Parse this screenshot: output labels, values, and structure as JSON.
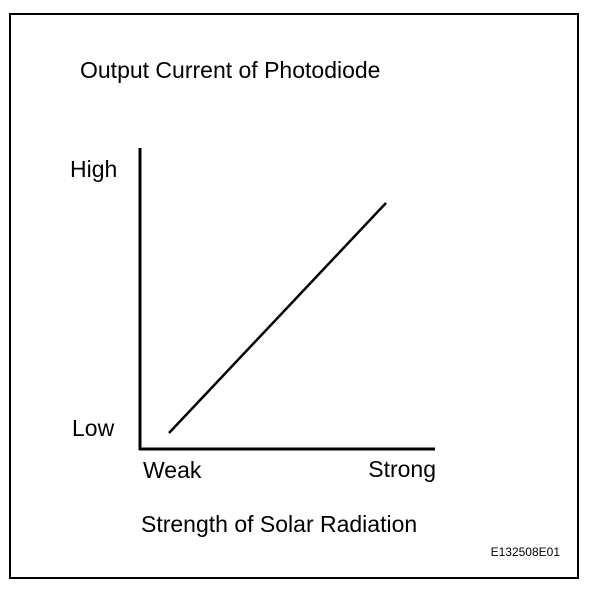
{
  "title": "Output Current of Photodiode",
  "y_axis": {
    "high": "High",
    "low": "Low"
  },
  "x_axis": {
    "low": "Weak",
    "high": "Strong",
    "label": "Strength of Solar Radiation"
  },
  "figure_code": "E132508E01"
}
